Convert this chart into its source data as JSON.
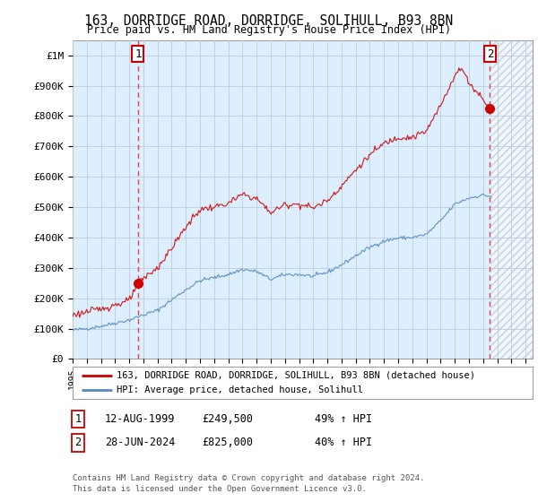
{
  "title": "163, DORRIDGE ROAD, DORRIDGE, SOLIHULL, B93 8BN",
  "subtitle": "Price paid vs. HM Land Registry's House Price Index (HPI)",
  "ylim": [
    0,
    1050000
  ],
  "xlim_start": 1995.0,
  "xlim_end": 2027.5,
  "sale1_date": 1999.617,
  "sale1_price": 249500,
  "sale2_date": 2024.49,
  "sale2_price": 825000,
  "data_end_date": 2024.6,
  "legend_red": "163, DORRIDGE ROAD, DORRIDGE, SOLIHULL, B93 8BN (detached house)",
  "legend_blue": "HPI: Average price, detached house, Solihull",
  "footer1": "Contains HM Land Registry data © Crown copyright and database right 2024.",
  "footer2": "This data is licensed under the Open Government Licence v3.0.",
  "red_line_color": "#cc0000",
  "blue_line_color": "#5588bb",
  "vline_color": "#dd4444",
  "grid_color": "#bbccdd",
  "chart_bg_color": "#ddeeff",
  "background_color": "#ffffff",
  "ytick_labels": [
    "£0",
    "£100K",
    "£200K",
    "£300K",
    "£400K",
    "£500K",
    "£600K",
    "£700K",
    "£800K",
    "£900K",
    "£1M"
  ],
  "ytick_values": [
    0,
    100000,
    200000,
    300000,
    400000,
    500000,
    600000,
    700000,
    800000,
    900000,
    1000000
  ],
  "xtick_years": [
    1995,
    1996,
    1997,
    1998,
    1999,
    2000,
    2001,
    2002,
    2003,
    2004,
    2005,
    2006,
    2007,
    2008,
    2009,
    2010,
    2011,
    2012,
    2013,
    2014,
    2015,
    2016,
    2017,
    2018,
    2019,
    2020,
    2021,
    2022,
    2023,
    2024,
    2025,
    2026,
    2027
  ]
}
